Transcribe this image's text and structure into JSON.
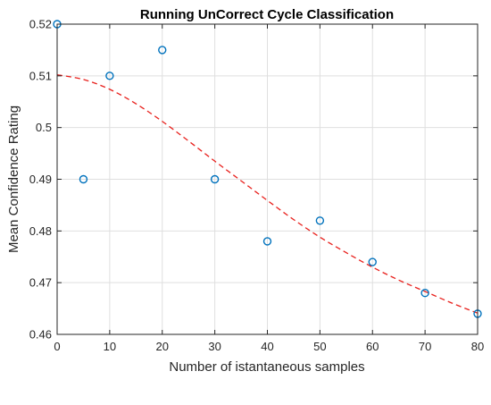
{
  "chart_data": {
    "type": "scatter",
    "title": "Running UnCorrect Cycle Classification",
    "xlabel": "Number of istantaneous samples",
    "ylabel": "Mean Confidence Rating",
    "xlim": [
      0,
      80
    ],
    "ylim": [
      0.46,
      0.52
    ],
    "xticks": [
      "0",
      "10",
      "20",
      "30",
      "40",
      "50",
      "60",
      "70",
      "80"
    ],
    "yticks": [
      "0.46",
      "0.47",
      "0.48",
      "0.49",
      "0.5",
      "0.51",
      "0.52"
    ],
    "grid": true,
    "series": [
      {
        "kind": "markers",
        "marker": "circle-open",
        "color": "#0072bd",
        "x": [
          0,
          5,
          10,
          20,
          30,
          40,
          50,
          60,
          70,
          80
        ],
        "y": [
          0.52,
          0.49,
          0.51,
          0.515,
          0.49,
          0.478,
          0.482,
          0.474,
          0.468,
          0.464
        ]
      },
      {
        "kind": "fit-line",
        "style": "dashed",
        "color": "#e8201c",
        "x": [
          0,
          5,
          10,
          15,
          20,
          25,
          30,
          35,
          40,
          45,
          50,
          55,
          60,
          65,
          70,
          75,
          80
        ],
        "y": [
          0.5102,
          0.5093,
          0.5074,
          0.5046,
          0.5012,
          0.4974,
          0.4935,
          0.4897,
          0.4859,
          0.4822,
          0.4788,
          0.4758,
          0.473,
          0.4705,
          0.4683,
          0.4661,
          0.4641
        ]
      }
    ]
  }
}
